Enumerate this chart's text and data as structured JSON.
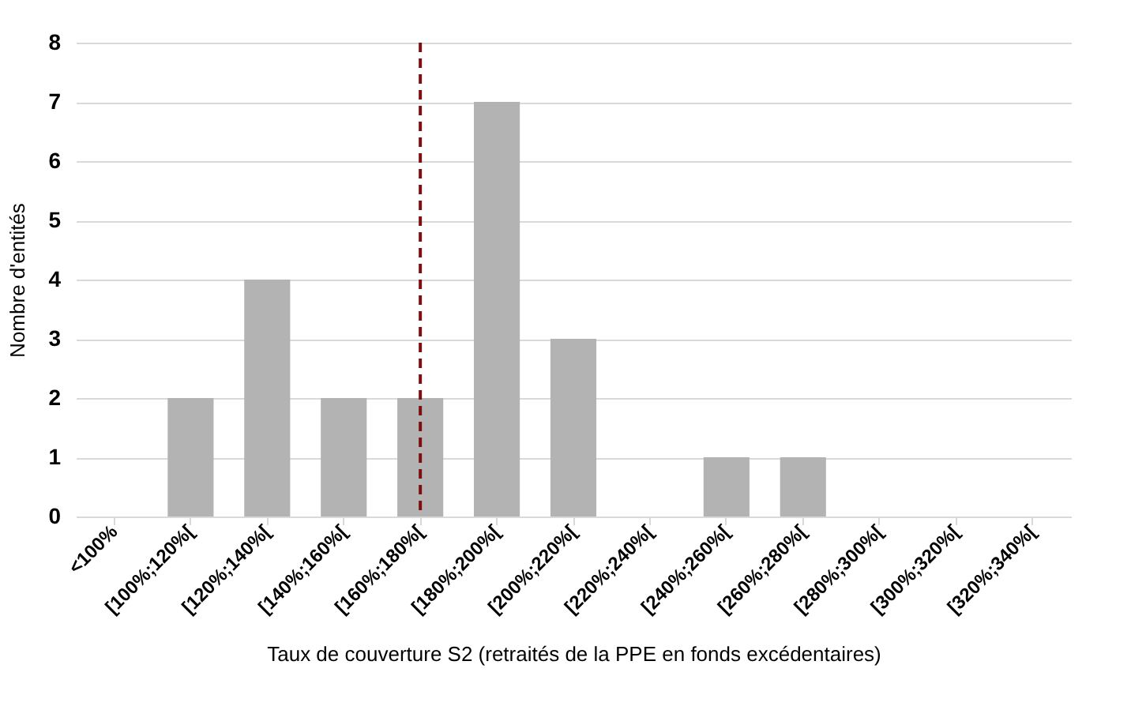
{
  "chart_data": {
    "type": "bar",
    "xlabel": "Taux de couverture S2 (retraités de la PPE en fonds excédentaires)",
    "ylabel": "Nombre d'entités",
    "categories": [
      "<100%",
      "[100%;120%[",
      "[120%;140%[",
      "[140%;160%[",
      "[160%;180%[",
      "[180%;200%[",
      "[200%;220%[",
      "[220%;240%[",
      "[240%;260%[",
      "[260%;280%[",
      "[280%;300%[",
      "[300%;320%[",
      "[320%;340%["
    ],
    "values": [
      0,
      2,
      4,
      2,
      2,
      7,
      3,
      0,
      1,
      1,
      0,
      0,
      0
    ],
    "color": "#b3b3b3",
    "ylim": [
      0,
      8
    ],
    "yticks": [
      0,
      1,
      2,
      3,
      4,
      5,
      6,
      7,
      8
    ],
    "grid": "y",
    "ref_lines": [
      {
        "axis": "x",
        "value": "[160%;180%[",
        "color": "#7b1010",
        "line_style": "dashed"
      }
    ]
  }
}
